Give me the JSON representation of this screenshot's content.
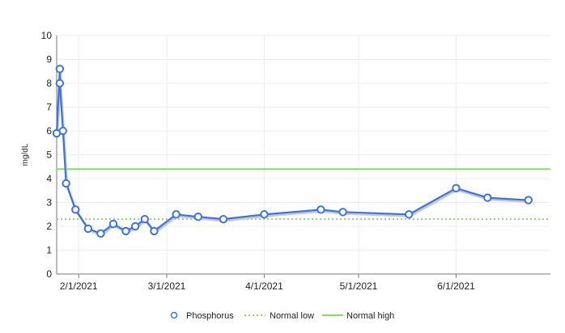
{
  "chart_data": {
    "type": "line",
    "title": "",
    "xlabel": "",
    "ylabel": "mg/dL",
    "ylim": [
      0,
      10
    ],
    "xlim": [
      "2021-01-25",
      "2021-07-01"
    ],
    "grid": true,
    "legend_position": "bottom",
    "y_ticks": [
      "0",
      "1",
      "2",
      "3",
      "4",
      "5",
      "6",
      "7",
      "8",
      "9",
      "10"
    ],
    "x_ticks": [
      {
        "date": "2021-02-01",
        "label": "2/1/2021"
      },
      {
        "date": "2021-03-01",
        "label": "3/1/2021"
      },
      {
        "date": "2021-04-01",
        "label": "4/1/2021"
      },
      {
        "date": "2021-05-01",
        "label": "5/1/2021"
      },
      {
        "date": "2021-06-01",
        "label": "6/1/2021"
      }
    ],
    "series": [
      {
        "name": "Phosphorus",
        "style": "line-markers",
        "color": "#3e74d6",
        "points": [
          {
            "x": "2021-01-25",
            "y": 5.9
          },
          {
            "x": "2021-01-26",
            "y": 8.6
          },
          {
            "x": "2021-01-26",
            "y": 8.0
          },
          {
            "x": "2021-01-27",
            "y": 6.0
          },
          {
            "x": "2021-01-28",
            "y": 3.8
          },
          {
            "x": "2021-01-31",
            "y": 2.7
          },
          {
            "x": "2021-02-04",
            "y": 1.9
          },
          {
            "x": "2021-02-08",
            "y": 1.7
          },
          {
            "x": "2021-02-12",
            "y": 2.1
          },
          {
            "x": "2021-02-16",
            "y": 1.8
          },
          {
            "x": "2021-02-19",
            "y": 2.0
          },
          {
            "x": "2021-02-22",
            "y": 2.3
          },
          {
            "x": "2021-02-25",
            "y": 1.8
          },
          {
            "x": "2021-03-04",
            "y": 2.5
          },
          {
            "x": "2021-03-11",
            "y": 2.4
          },
          {
            "x": "2021-03-19",
            "y": 2.3
          },
          {
            "x": "2021-04-01",
            "y": 2.5
          },
          {
            "x": "2021-04-19",
            "y": 2.7
          },
          {
            "x": "2021-04-26",
            "y": 2.6
          },
          {
            "x": "2021-05-17",
            "y": 2.5
          },
          {
            "x": "2021-06-01",
            "y": 3.6
          },
          {
            "x": "2021-06-11",
            "y": 3.2
          },
          {
            "x": "2021-06-24",
            "y": 3.1
          }
        ]
      },
      {
        "name": "Normal low",
        "style": "dotted",
        "color": "#8fd66b",
        "y": 2.3
      },
      {
        "name": "Normal high",
        "style": "solid",
        "color": "#8fd66b",
        "y": 4.4
      }
    ]
  }
}
